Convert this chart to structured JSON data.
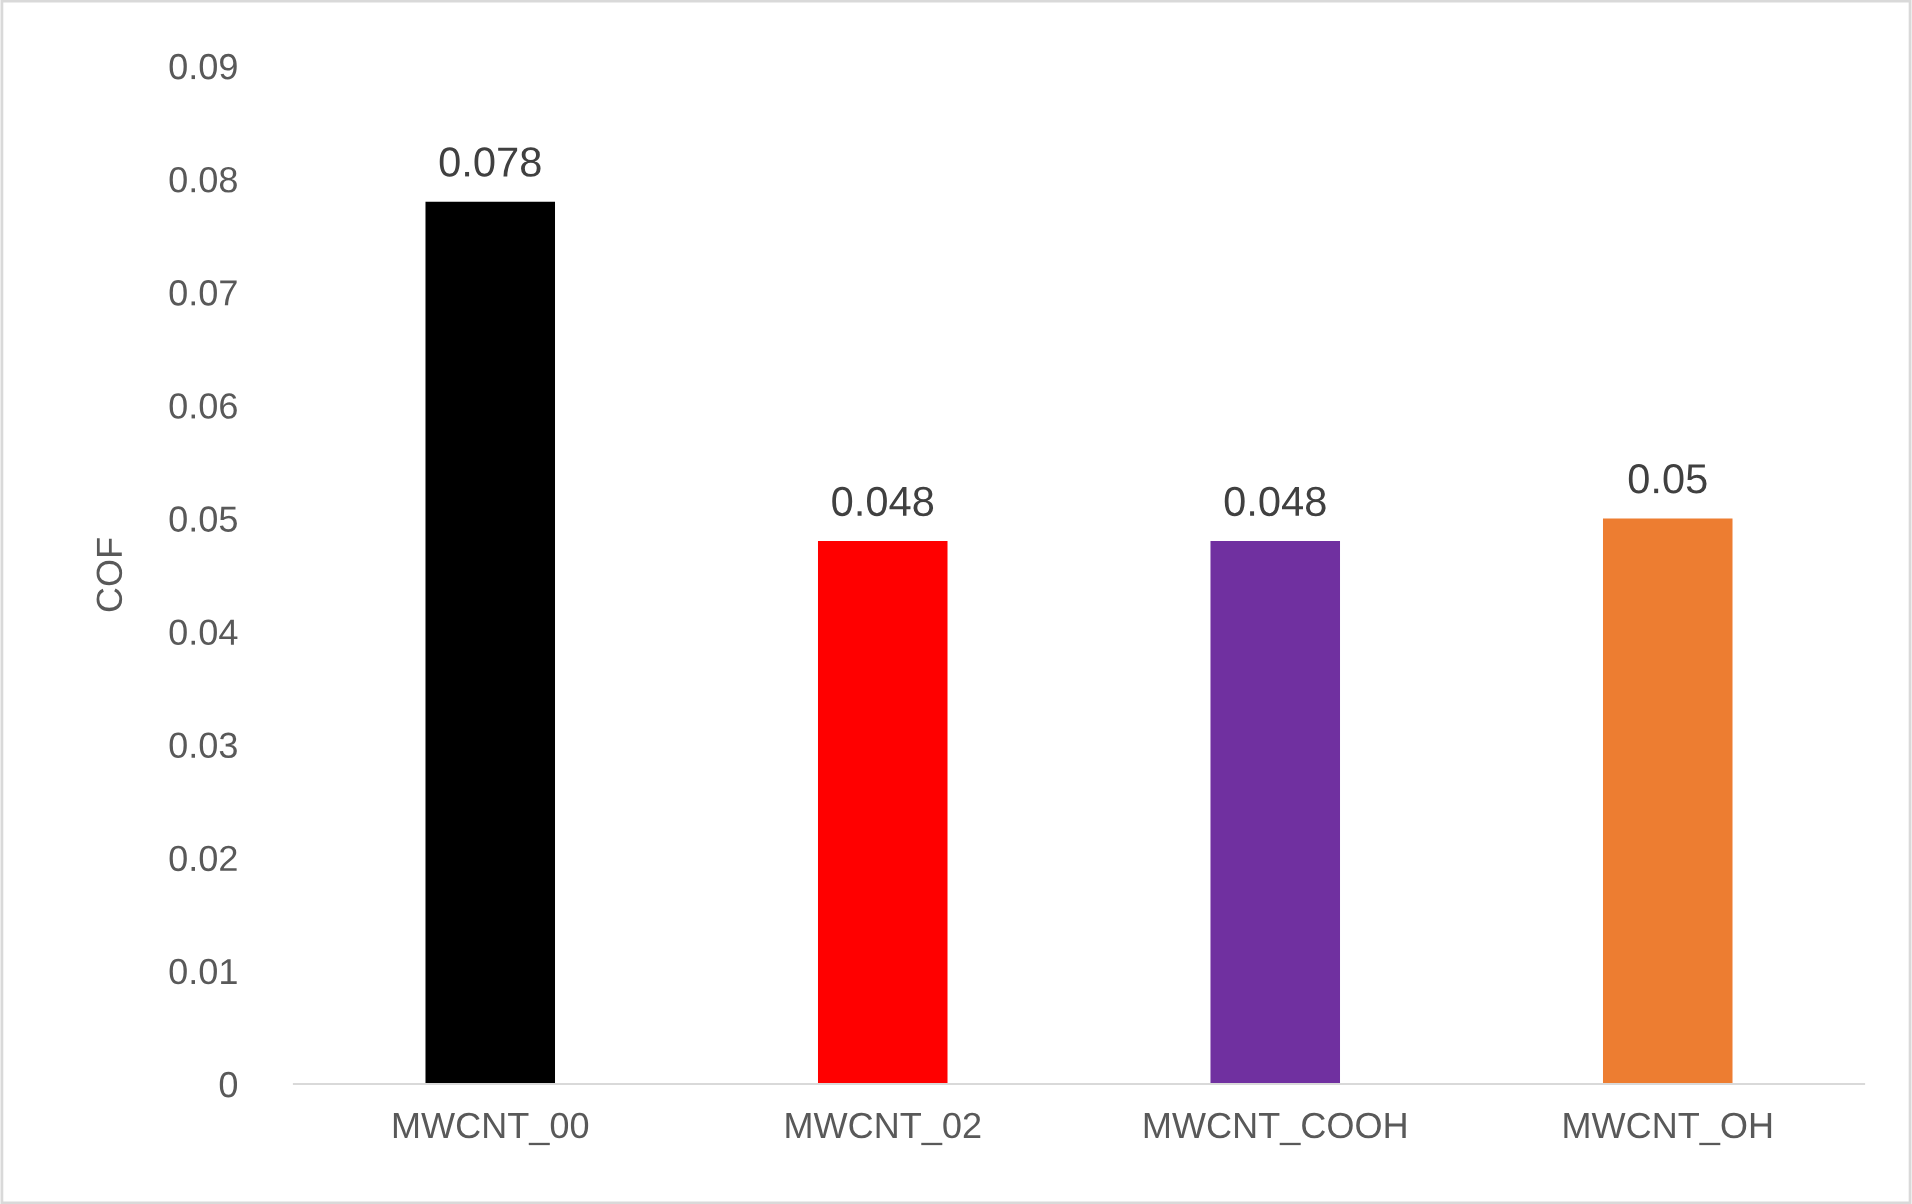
{
  "chart_data": {
    "type": "bar",
    "ylabel": "COF",
    "categories": [
      "MWCNT_00",
      "MWCNT_02",
      "MWCNT_COOH",
      "MWCNT_OH"
    ],
    "values": [
      0.078,
      0.048,
      0.048,
      0.05
    ],
    "colors": [
      "#000000",
      "#ff0000",
      "#7030a0",
      "#ed7d31"
    ],
    "ylim": [
      0,
      0.09
    ],
    "yticks": [
      {
        "value": 0,
        "label": "0"
      },
      0.01,
      0.02,
      0.03,
      0.04,
      0.05,
      0.06,
      0.07,
      0.08,
      0.09
    ],
    "grid": false,
    "data_labels": true
  }
}
